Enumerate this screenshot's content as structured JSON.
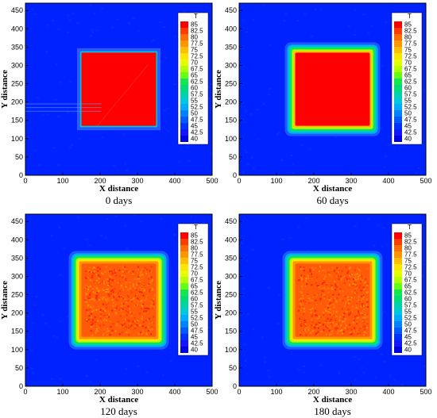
{
  "chart_data": [
    {
      "type": "heatmap",
      "caption": "0 days",
      "xlabel": "X distance",
      "ylabel": "Y distance",
      "xlim": [
        0,
        500
      ],
      "ylim": [
        0,
        470
      ],
      "xticks": [
        0,
        100,
        200,
        300,
        400,
        500
      ],
      "yticks": [
        0,
        50,
        100,
        150,
        200,
        250,
        300,
        350,
        400,
        450
      ],
      "legend_title": "T",
      "legend_position": "right",
      "background_T": 40,
      "hot_zone": {
        "x": [
          150,
          350
        ],
        "y": [
          135,
          335
        ],
        "T": 85
      },
      "state": "uniform"
    },
    {
      "type": "heatmap",
      "caption": "60 days",
      "xlabel": "X distance",
      "ylabel": "Y distance",
      "xlim": [
        0,
        500
      ],
      "ylim": [
        0,
        470
      ],
      "xticks": [
        0,
        100,
        200,
        300,
        400,
        500
      ],
      "yticks": [
        0,
        50,
        100,
        150,
        200,
        250,
        300,
        350,
        400,
        450
      ],
      "legend_title": "T",
      "legend_position": "right",
      "background_T": 40,
      "hot_zone": {
        "x": [
          150,
          350
        ],
        "y": [
          135,
          335
        ],
        "T": 85
      },
      "state": "diffused-edge"
    },
    {
      "type": "heatmap",
      "caption": "120 days",
      "xlabel": "X distance",
      "ylabel": "Y distance",
      "xlim": [
        0,
        500
      ],
      "ylim": [
        0,
        470
      ],
      "xticks": [
        0,
        100,
        200,
        300,
        400,
        500
      ],
      "yticks": [
        0,
        50,
        100,
        150,
        200,
        250,
        300,
        350,
        400,
        450
      ],
      "legend_title": "T",
      "legend_position": "right",
      "background_T": 40,
      "hot_zone": {
        "x": [
          150,
          350
        ],
        "y": [
          135,
          335
        ],
        "T": 82.5
      },
      "state": "mottled"
    },
    {
      "type": "heatmap",
      "caption": "180 days",
      "xlabel": "X distance",
      "ylabel": "Y distance",
      "xlim": [
        0,
        500
      ],
      "ylim": [
        0,
        470
      ],
      "xticks": [
        0,
        100,
        200,
        300,
        400,
        500
      ],
      "yticks": [
        0,
        50,
        100,
        150,
        200,
        250,
        300,
        350,
        400,
        450
      ],
      "legend_title": "T",
      "legend_position": "right",
      "background_T": 40,
      "hot_zone": {
        "x": [
          150,
          350
        ],
        "y": [
          135,
          335
        ],
        "T": 82.5
      },
      "state": "mottled"
    }
  ],
  "legend_levels": [
    "85",
    "82.5",
    "80",
    "77.5",
    "75",
    "72.5",
    "70",
    "67.5",
    "65",
    "62.5",
    "60",
    "57.5",
    "55",
    "52.5",
    "50",
    "47.5",
    "45",
    "42.5",
    "40"
  ],
  "legend_colors": [
    "#ff0000",
    "#ff3c00",
    "#ff6e00",
    "#ff9600",
    "#ffbe00",
    "#ffe600",
    "#e6ff00",
    "#b4ff00",
    "#64ff14",
    "#14e650",
    "#00dc78",
    "#00d2aa",
    "#00c8dc",
    "#00aaff",
    "#0082ff",
    "#005aff",
    "#0032ff",
    "#1414ff",
    "#0000e6"
  ],
  "colors": {
    "background": "#0022ff",
    "hot": "#ff0000",
    "hot_mottled": "#ff5a0a"
  }
}
